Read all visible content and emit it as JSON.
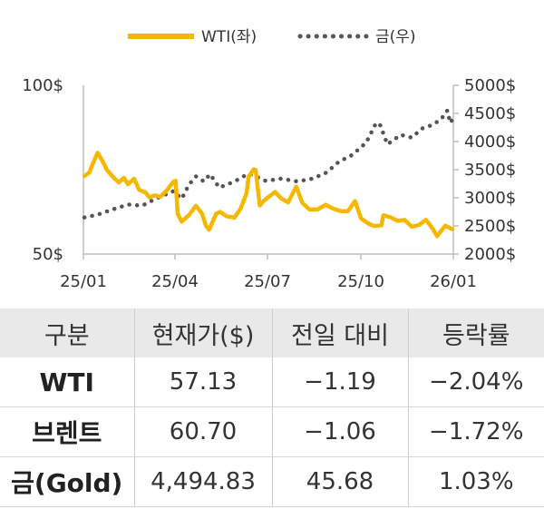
{
  "chart_data": {
    "type": "line",
    "legend": [
      "WTI(좌)",
      "금(우)"
    ],
    "legend_placement": "top-center",
    "x_ticks": [
      "25/01",
      "25/04",
      "25/07",
      "25/10",
      "26/01"
    ],
    "y_left_ticks": [
      "100$",
      "50$"
    ],
    "y_right_ticks": [
      "5000$",
      "4500$",
      "4000$",
      "3500$",
      "3000$",
      "2500$",
      "2000$"
    ],
    "y_left_range": [
      50,
      100
    ],
    "y_right_range": [
      2000,
      5000
    ],
    "x_range": [
      "2025-01-01",
      "2026-01-01"
    ],
    "grid": false,
    "series": [
      {
        "name": "WTI(좌)",
        "axis": "left",
        "color": "#f5b800",
        "style": "solid",
        "points": [
          [
            "2025-01-02",
            73.1
          ],
          [
            "2025-01-07",
            74.2
          ],
          [
            "2025-01-10",
            76.6
          ],
          [
            "2025-01-15",
            80.0
          ],
          [
            "2025-01-20",
            77.5
          ],
          [
            "2025-01-24",
            75.0
          ],
          [
            "2025-01-31",
            72.6
          ],
          [
            "2025-02-05",
            71.2
          ],
          [
            "2025-02-10",
            72.6
          ],
          [
            "2025-02-14",
            70.7
          ],
          [
            "2025-02-20",
            72.3
          ],
          [
            "2025-02-25",
            69.0
          ],
          [
            "2025-03-03",
            68.3
          ],
          [
            "2025-03-07",
            66.8
          ],
          [
            "2025-03-12",
            67.4
          ],
          [
            "2025-03-18",
            67.0
          ],
          [
            "2025-03-24",
            68.8
          ],
          [
            "2025-03-31",
            71.5
          ],
          [
            "2025-04-02",
            71.7
          ],
          [
            "2025-04-04",
            61.9
          ],
          [
            "2025-04-08",
            59.6
          ],
          [
            "2025-04-10",
            60.2
          ],
          [
            "2025-04-15",
            61.5
          ],
          [
            "2025-04-22",
            64.3
          ],
          [
            "2025-04-28",
            62.0
          ],
          [
            "2025-05-02",
            58.3
          ],
          [
            "2025-05-05",
            57.2
          ],
          [
            "2025-05-12",
            61.9
          ],
          [
            "2025-05-16",
            62.5
          ],
          [
            "2025-05-22",
            61.2
          ],
          [
            "2025-05-30",
            60.8
          ],
          [
            "2025-06-05",
            63.4
          ],
          [
            "2025-06-11",
            68.1
          ],
          [
            "2025-06-13",
            72.9
          ],
          [
            "2025-06-18",
            75.1
          ],
          [
            "2025-06-20",
            74.9
          ],
          [
            "2025-06-24",
            64.4
          ],
          [
            "2025-06-27",
            65.5
          ],
          [
            "2025-07-03",
            67.0
          ],
          [
            "2025-07-09",
            68.4
          ],
          [
            "2025-07-15",
            66.5
          ],
          [
            "2025-07-22",
            65.3
          ],
          [
            "2025-07-30",
            70.0
          ],
          [
            "2025-08-05",
            65.2
          ],
          [
            "2025-08-12",
            63.2
          ],
          [
            "2025-08-20",
            63.2
          ],
          [
            "2025-08-28",
            64.6
          ],
          [
            "2025-09-04",
            63.5
          ],
          [
            "2025-09-12",
            62.7
          ],
          [
            "2025-09-19",
            62.7
          ],
          [
            "2025-09-26",
            65.7
          ],
          [
            "2025-10-02",
            60.5
          ],
          [
            "2025-10-10",
            58.9
          ],
          [
            "2025-10-15",
            58.3
          ],
          [
            "2025-10-22",
            58.5
          ],
          [
            "2025-10-24",
            61.5
          ],
          [
            "2025-10-31",
            60.9
          ],
          [
            "2025-11-07",
            59.8
          ],
          [
            "2025-11-14",
            60.1
          ],
          [
            "2025-11-21",
            58.1
          ],
          [
            "2025-11-28",
            58.6
          ],
          [
            "2025-12-05",
            60.1
          ],
          [
            "2025-12-12",
            57.4
          ],
          [
            "2025-12-16",
            55.3
          ],
          [
            "2025-12-19",
            56.5
          ],
          [
            "2025-12-24",
            58.4
          ],
          [
            "2025-12-31",
            57.4
          ]
        ]
      },
      {
        "name": "금(우)",
        "axis": "right",
        "color": "#555555",
        "style": "dotted",
        "points": [
          [
            "2025-01-02",
            2650
          ],
          [
            "2025-01-15",
            2700
          ],
          [
            "2025-01-31",
            2800
          ],
          [
            "2025-02-14",
            2880
          ],
          [
            "2025-02-28",
            2860
          ],
          [
            "2025-03-14",
            2990
          ],
          [
            "2025-03-31",
            3120
          ],
          [
            "2025-04-08",
            2980
          ],
          [
            "2025-04-15",
            3230
          ],
          [
            "2025-04-22",
            3380
          ],
          [
            "2025-04-30",
            3290
          ],
          [
            "2025-05-06",
            3420
          ],
          [
            "2025-05-15",
            3180
          ],
          [
            "2025-05-30",
            3290
          ],
          [
            "2025-06-13",
            3430
          ],
          [
            "2025-06-30",
            3300
          ],
          [
            "2025-07-15",
            3340
          ],
          [
            "2025-07-31",
            3290
          ],
          [
            "2025-08-15",
            3340
          ],
          [
            "2025-08-29",
            3450
          ],
          [
            "2025-09-10",
            3640
          ],
          [
            "2025-09-23",
            3760
          ],
          [
            "2025-10-07",
            3980
          ],
          [
            "2025-10-16",
            4300
          ],
          [
            "2025-10-20",
            4330
          ],
          [
            "2025-10-28",
            3950
          ],
          [
            "2025-11-10",
            4120
          ],
          [
            "2025-11-21",
            4070
          ],
          [
            "2025-12-01",
            4230
          ],
          [
            "2025-12-12",
            4300
          ],
          [
            "2025-12-20",
            4400
          ],
          [
            "2025-12-26",
            4550
          ],
          [
            "2025-12-29",
            4330
          ],
          [
            "2025-12-31",
            4390
          ]
        ]
      }
    ]
  },
  "table": {
    "headers": [
      "구분",
      "현재가($)",
      "전일 대비",
      "등락률"
    ],
    "rows": [
      {
        "label": "WTI",
        "price": "57.13",
        "change": "−1.19",
        "rate": "−2.04%"
      },
      {
        "label": "브렌트",
        "price": "60.70",
        "change": "−1.06",
        "rate": "−1.72%"
      },
      {
        "label": "금(Gold)",
        "price": "4,494.83",
        "change": "45.68",
        "rate": "1.03%"
      }
    ]
  }
}
